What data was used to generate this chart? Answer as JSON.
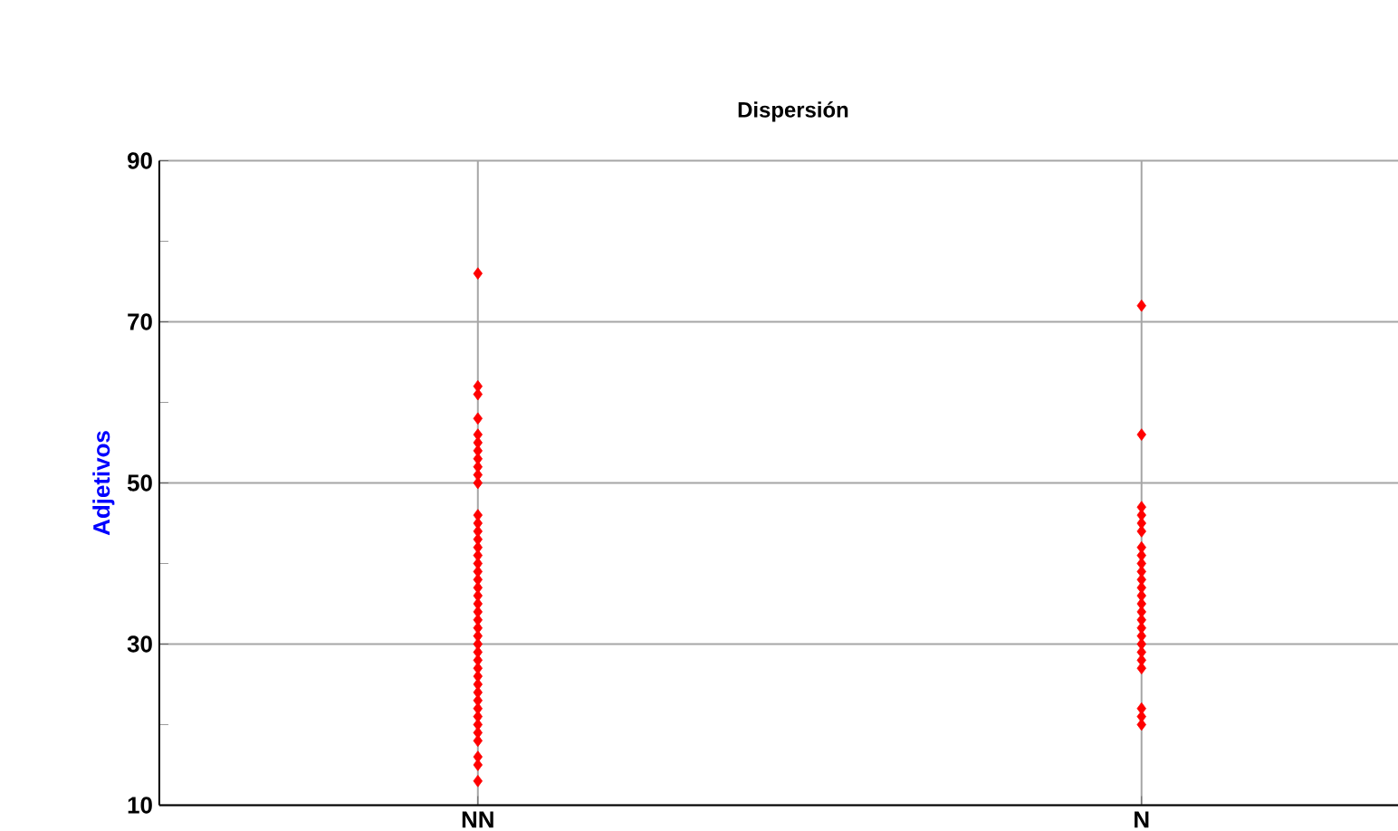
{
  "chart_data": {
    "type": "scatter",
    "title": "Dispersión",
    "ylabel": "Adjetivos",
    "categories": [
      "NN",
      "N"
    ],
    "series": [
      {
        "color": "#ff0000",
        "x": [
          "NN",
          "NN",
          "NN",
          "NN",
          "NN",
          "NN",
          "NN",
          "NN",
          "NN",
          "NN",
          "NN",
          "NN",
          "NN",
          "NN",
          "NN",
          "NN",
          "NN",
          "NN",
          "NN",
          "NN",
          "NN",
          "NN",
          "NN",
          "NN",
          "NN",
          "NN",
          "NN",
          "NN",
          "NN",
          "NN",
          "NN",
          "NN",
          "NN",
          "NN",
          "NN",
          "NN",
          "NN",
          "NN",
          "NN",
          "NN",
          "NN",
          "NN",
          "NN"
        ],
        "values": [
          13,
          15,
          16,
          18,
          19,
          20,
          21,
          22,
          23,
          24,
          25,
          26,
          27,
          28,
          29,
          30,
          31,
          32,
          33,
          34,
          35,
          36,
          37,
          38,
          39,
          40,
          41,
          42,
          43,
          44,
          45,
          46,
          50,
          51,
          52,
          53,
          54,
          55,
          56,
          58,
          61,
          62,
          76
        ]
      },
      {
        "color": "#ff0000",
        "x": [
          "N",
          "N",
          "N",
          "N",
          "N",
          "N",
          "N",
          "N",
          "N",
          "N",
          "N",
          "N",
          "N",
          "N",
          "N",
          "N",
          "N",
          "N",
          "N",
          "N",
          "N",
          "N",
          "N",
          "N",
          "N"
        ],
        "values": [
          20,
          21,
          22,
          27,
          28,
          29,
          30,
          31,
          32,
          33,
          34,
          35,
          36,
          37,
          38,
          39,
          40,
          41,
          42,
          44,
          45,
          46,
          47,
          56,
          72
        ]
      }
    ],
    "ylim": [
      10,
      90
    ],
    "yticks": [
      10,
      {
        "value": 20,
        "label": null
      },
      30,
      {
        "value": 40,
        "label": null
      },
      50,
      {
        "value": 60,
        "label": null
      },
      70,
      {
        "value": 80,
        "label": null
      },
      90
    ],
    "grid": true,
    "marker": "diamond"
  }
}
